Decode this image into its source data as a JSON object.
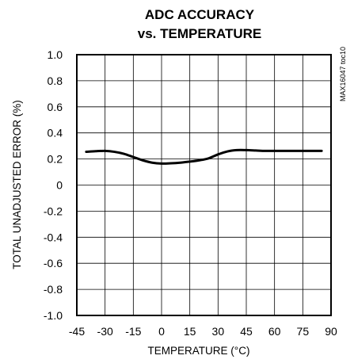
{
  "chart_data": {
    "type": "line",
    "title": [
      "ADC ACCURACY",
      "vs. TEMPERATURE"
    ],
    "xlabel": "TEMPERATURE (°C)",
    "ylabel": "TOTAL UNADJUSTED ERROR (%)",
    "part_number": "MAX16047 toc10",
    "xlim": [
      -45,
      90
    ],
    "ylim": [
      -1.0,
      1.0
    ],
    "xticks": [
      -45,
      -30,
      -15,
      0,
      15,
      30,
      45,
      60,
      75,
      90
    ],
    "xtick_labels": [
      "-45",
      "-30",
      "-15",
      "0",
      "15",
      "30",
      "45",
      "60",
      "75",
      "90"
    ],
    "yticks": [
      1.0,
      0.8,
      0.6,
      0.4,
      0.2,
      0,
      -0.2,
      -0.4,
      -0.6,
      -0.8,
      -1.0
    ],
    "ytick_labels": [
      "1.0",
      "0.8",
      "0.6",
      "0.4",
      "0.2",
      "0",
      "-0.2",
      "-0.4",
      "-0.6",
      "-0.8",
      "-1.0"
    ],
    "grid": true,
    "series": [
      {
        "x": [
          -40,
          -35,
          -30,
          -25,
          -20,
          -15,
          -10,
          -5,
          0,
          5,
          10,
          15,
          20,
          25,
          30,
          35,
          40,
          45,
          50,
          55,
          60,
          65,
          70,
          75,
          80,
          85
        ],
        "y": [
          0.255,
          0.26,
          0.262,
          0.255,
          0.24,
          0.215,
          0.19,
          0.172,
          0.165,
          0.167,
          0.172,
          0.18,
          0.19,
          0.205,
          0.235,
          0.258,
          0.268,
          0.268,
          0.265,
          0.262,
          0.262,
          0.262,
          0.262,
          0.262,
          0.262,
          0.262
        ]
      }
    ],
    "line_color": "#000000",
    "grid_color": "#000000"
  }
}
